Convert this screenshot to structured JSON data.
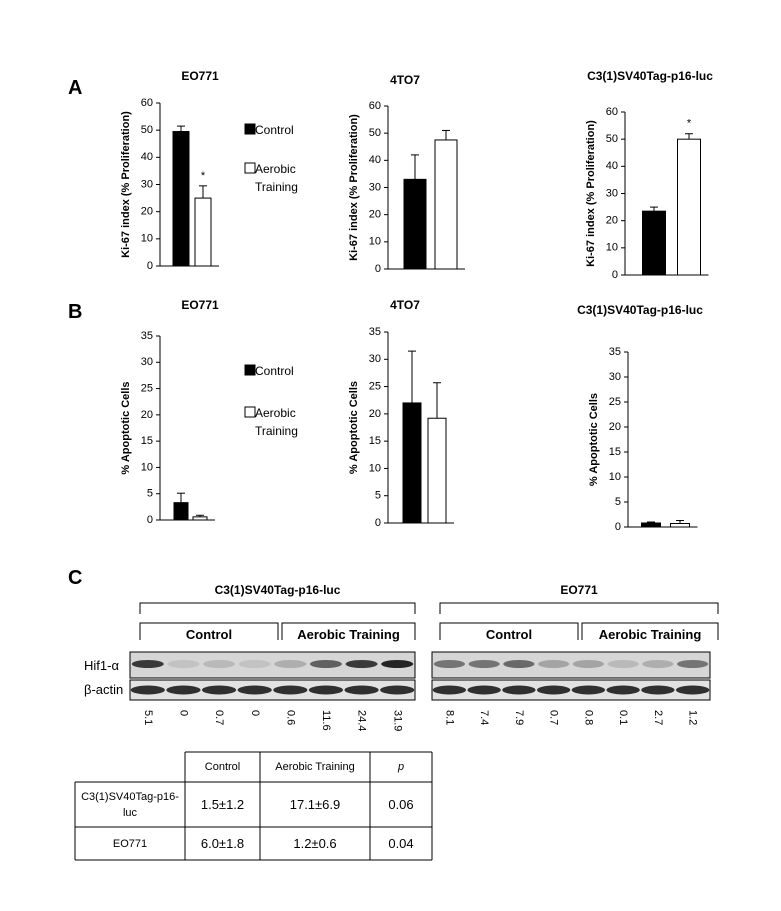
{
  "panels": [
    "A",
    "B",
    "C"
  ],
  "chart_data": [
    {
      "type": "bar",
      "title": "EO771",
      "ylabel": "Ki-67 index (% Proliferation)",
      "ylim": [
        0,
        60
      ],
      "yticks": [
        0,
        10,
        20,
        30,
        40,
        50,
        60
      ],
      "legend": true,
      "series": [
        {
          "name": "Control",
          "color": "#000000",
          "values": [
            49.5
          ],
          "error": [
            2
          ]
        },
        {
          "name": "Aerobic Training",
          "color": "#ffffff",
          "values": [
            25
          ],
          "error": [
            4.5
          ],
          "annotation": "*"
        }
      ]
    },
    {
      "type": "bar",
      "title": "4TO7",
      "ylabel": "Ki-67 index (% Proliferation)",
      "ylim": [
        0,
        60
      ],
      "yticks": [
        0,
        10,
        20,
        30,
        40,
        50,
        60
      ],
      "series": [
        {
          "color": "#000000",
          "values": [
            33
          ],
          "error": [
            9
          ]
        },
        {
          "color": "#ffffff",
          "values": [
            47.5
          ],
          "error": [
            3.5
          ]
        }
      ]
    },
    {
      "type": "bar",
      "title": "C3(1)SV40Tag-p16-luc",
      "ylabel": "Ki-67 index (% Proliferation)",
      "ylim": [
        0,
        60
      ],
      "yticks": [
        0,
        10,
        20,
        30,
        40,
        50,
        60
      ],
      "series": [
        {
          "color": "#000000",
          "values": [
            23.5
          ],
          "error": [
            1.5
          ]
        },
        {
          "color": "#ffffff",
          "values": [
            50
          ],
          "error": [
            2
          ],
          "annotation": "*"
        }
      ]
    },
    {
      "type": "bar",
      "title": "EO771",
      "ylabel": "% Apoptotic Cells",
      "ylim": [
        0,
        35
      ],
      "yticks": [
        0,
        5,
        10,
        15,
        20,
        25,
        30,
        35
      ],
      "legend": true,
      "series": [
        {
          "name": "Control",
          "color": "#000000",
          "values": [
            3.3
          ],
          "error": [
            1.8
          ]
        },
        {
          "name": "Aerobic Training",
          "color": "#ffffff",
          "values": [
            0.6
          ],
          "error": [
            0.3
          ]
        }
      ]
    },
    {
      "type": "bar",
      "title": "4TO7",
      "ylabel": "% Apoptotic Cells",
      "ylim": [
        0,
        35
      ],
      "yticks": [
        0,
        5,
        10,
        15,
        20,
        25,
        30,
        35
      ],
      "series": [
        {
          "color": "#000000",
          "values": [
            22
          ],
          "error": [
            9.5
          ]
        },
        {
          "color": "#ffffff",
          "values": [
            19.2
          ],
          "error": [
            6.5
          ]
        }
      ]
    },
    {
      "type": "bar",
      "title": "C3(1)SV40Tag-p16-luc",
      "ylabel": "% Apoptotic Cells",
      "ylim": [
        0,
        35
      ],
      "yticks": [
        0,
        5,
        10,
        15,
        20,
        25,
        30,
        35
      ],
      "series": [
        {
          "color": "#000000",
          "values": [
            0.8
          ],
          "error": [
            0.2
          ]
        },
        {
          "color": "#ffffff",
          "values": [
            0.7
          ],
          "error": [
            0.6
          ]
        }
      ]
    }
  ],
  "blot": {
    "rows": [
      "Hif1-α",
      "β-actin"
    ],
    "groups": [
      {
        "title": "C3(1)SV40Tag-p16-luc",
        "conditions": [
          "Control",
          "Aerobic Training"
        ],
        "quantification": [
          5.1,
          0,
          0.7,
          0,
          0.6,
          11.6,
          24.4,
          31.9
        ]
      },
      {
        "title": "EO771",
        "conditions": [
          "Control",
          "Aerobic Training"
        ],
        "quantification": [
          8.1,
          7.4,
          7.9,
          0.7,
          0.8,
          0.1,
          2.7,
          1.2
        ]
      }
    ]
  },
  "table": {
    "header": [
      "Control",
      "Aerobic Training",
      "p"
    ],
    "rows": [
      {
        "label": "C3(1)SV40Tag-p16-luc",
        "cells": [
          "1.5±1.2",
          "17.1±6.9",
          "0.06"
        ]
      },
      {
        "label": "EO771",
        "cells": [
          "6.0±1.8",
          "1.2±0.6",
          "0.04"
        ]
      }
    ]
  }
}
